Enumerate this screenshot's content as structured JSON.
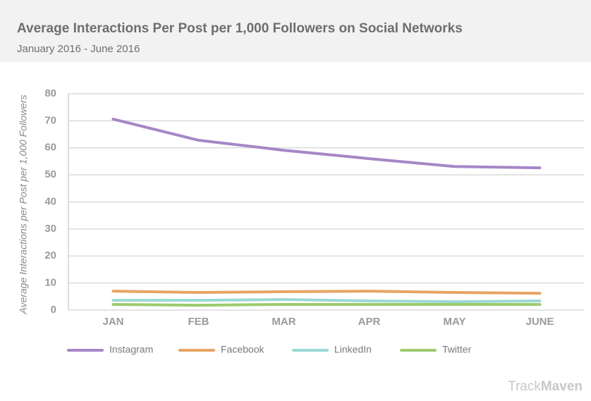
{
  "chart_data": {
    "type": "line",
    "title": "Average Interactions Per Post per 1,000 Followers on Social Networks",
    "subtitle": "January 2016 - June 2016",
    "y_label": "Average Interactions per Post per 1,000 Followers",
    "categories": [
      "JAN",
      "FEB",
      "MAR",
      "APR",
      "MAY",
      "JUNE"
    ],
    "series": [
      {
        "name": "Instagram",
        "color": "#a587c6",
        "values": [
          70.6,
          62.8,
          59.1,
          56.0,
          53.1,
          52.6
        ]
      },
      {
        "name": "Facebook",
        "color": "#e8a463",
        "values": [
          7.0,
          6.5,
          6.8,
          7.0,
          6.5,
          6.2
        ]
      },
      {
        "name": "LinkedIn",
        "color": "#9ad9d3",
        "values": [
          3.6,
          3.6,
          3.9,
          3.4,
          3.1,
          3.4
        ]
      },
      {
        "name": "Twitter",
        "color": "#9ccb6d",
        "values": [
          2.1,
          1.8,
          2.1,
          2.1,
          2.1,
          2.1
        ]
      }
    ],
    "ylim": [
      0,
      80
    ],
    "yticks": [
      0,
      10,
      20,
      30,
      40,
      50,
      60,
      70,
      80
    ],
    "grid": true,
    "watermark": [
      "Track",
      "Maven"
    ]
  }
}
